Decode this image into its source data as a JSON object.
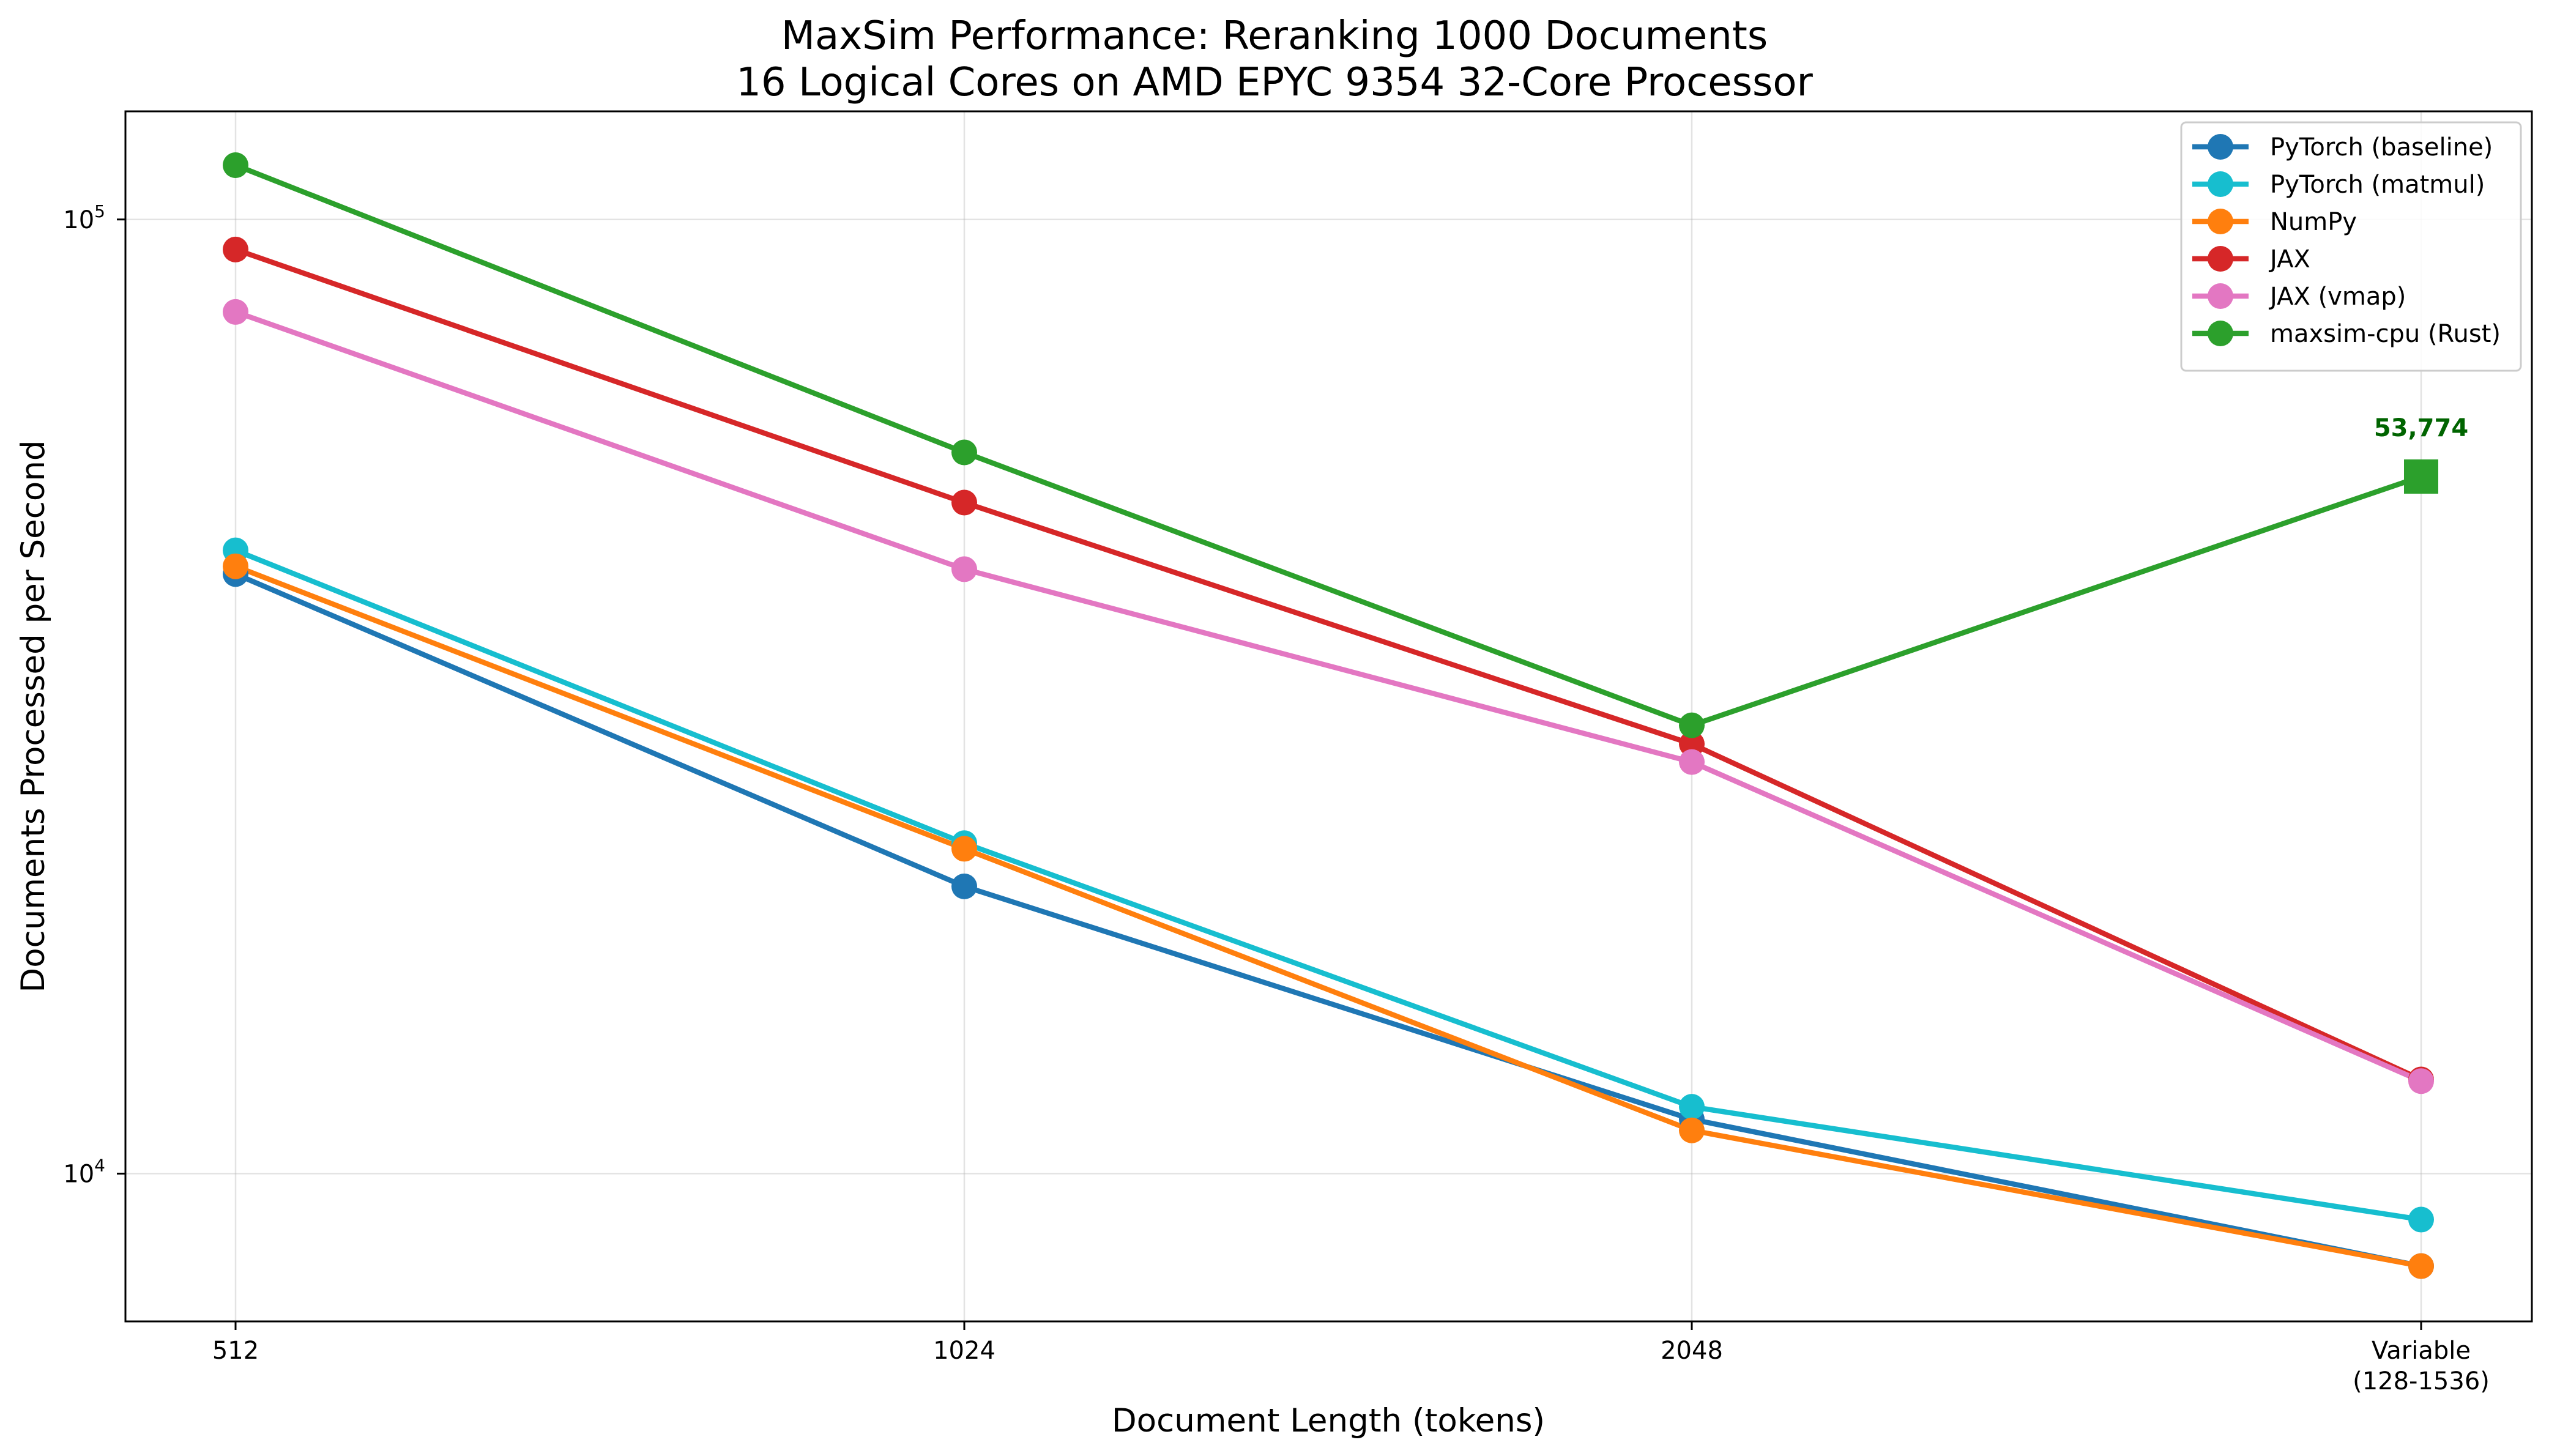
{
  "chart_data": {
    "type": "line",
    "title_lines": [
      "MaxSim Performance: Reranking 1000 Documents",
      "16 Logical Cores on AMD EPYC 9354 32-Core Processor"
    ],
    "xlabel": "Document Length (tokens)",
    "ylabel": "Documents Processed per Second",
    "yscale": "log",
    "ylim": [
      7000,
      114000
    ],
    "categories": [
      {
        "line1": "512",
        "line2": ""
      },
      {
        "line1": "1024",
        "line2": ""
      },
      {
        "line1": "2048",
        "line2": ""
      },
      {
        "line1": "Variable",
        "line2": "(128-1536)"
      }
    ],
    "yticks": [
      {
        "base": "10",
        "exp": "4",
        "value": 10000
      },
      {
        "base": "10",
        "exp": "5",
        "value": 100000
      }
    ],
    "grid": true,
    "legend_position": "upper right",
    "series": [
      {
        "name": "PyTorch (baseline)",
        "color": "#1f77b4",
        "values": [
          42500,
          20000,
          11400,
          8000
        ]
      },
      {
        "name": "PyTorch (matmul)",
        "color": "#17becf",
        "values": [
          45000,
          22200,
          11750,
          8950
        ]
      },
      {
        "name": "NumPy",
        "color": "#ff7f0e",
        "values": [
          43300,
          21900,
          11100,
          8000
        ]
      },
      {
        "name": "JAX",
        "color": "#d62728",
        "values": [
          93000,
          50500,
          28200,
          12550
        ]
      },
      {
        "name": "JAX (vmap)",
        "color": "#e377c2",
        "values": [
          80000,
          43000,
          27000,
          12500
        ]
      },
      {
        "name": "maxsim-cpu (Rust)",
        "color": "#2ca02c",
        "values": [
          114000,
          57000,
          29500,
          53774
        ],
        "last_marker": "square"
      }
    ],
    "annotations": [
      {
        "text": "53,774",
        "series": "maxsim-cpu (Rust)",
        "category_index": 3,
        "color": "#006400"
      }
    ]
  }
}
